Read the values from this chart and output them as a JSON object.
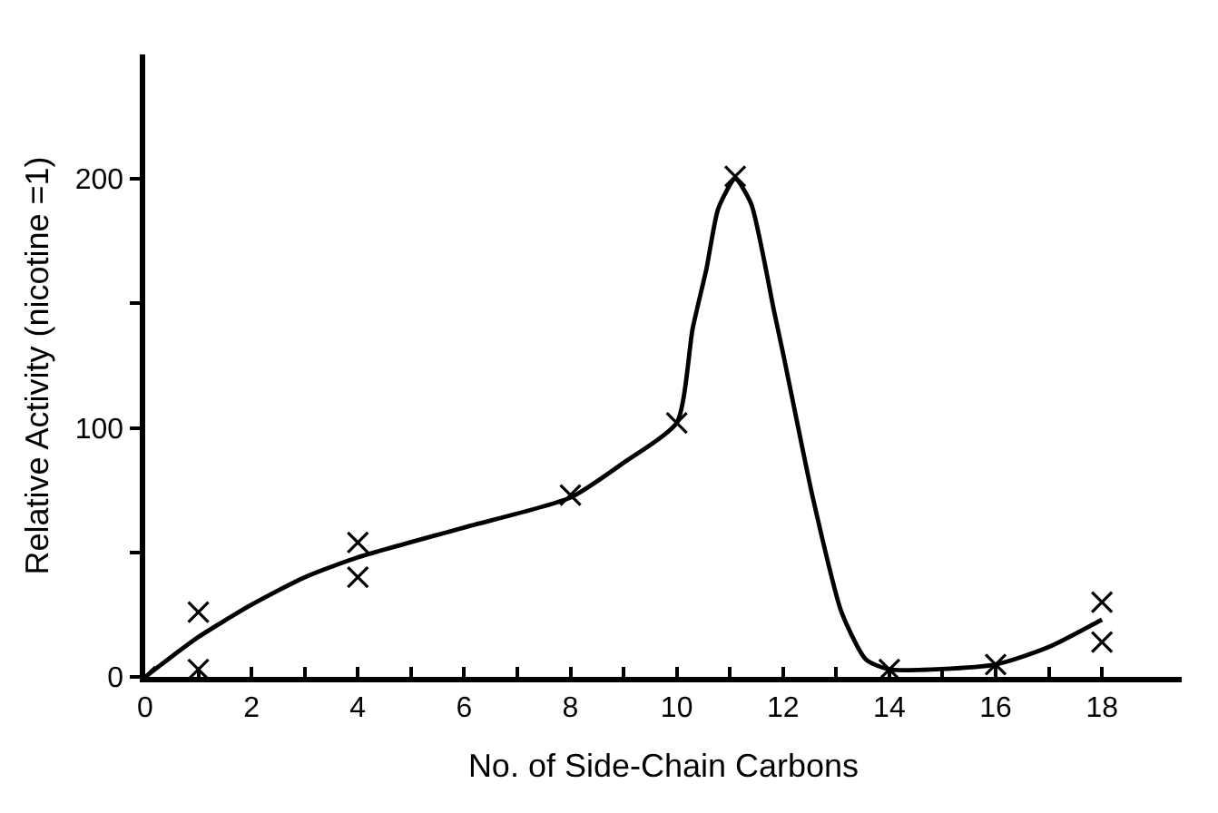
{
  "chart_data": {
    "type": "scatter",
    "xlabel": "No. of Side-Chain Carbons",
    "ylabel": "Relative Activity (nicotine =1)",
    "series": [
      {
        "color": "#000000",
        "marker": "cross",
        "x": [
          0,
          1,
          1,
          4,
          4,
          8,
          10,
          11.1,
          14,
          16,
          18,
          18
        ],
        "values": [
          0,
          26,
          3,
          54,
          40,
          73,
          102,
          201,
          3,
          5,
          30,
          14
        ]
      },
      {
        "type": "line",
        "color": "#000000",
        "marker": "none",
        "x": [
          0,
          1,
          2,
          3,
          4,
          6,
          8,
          9,
          10,
          10.3,
          10.56,
          10.78,
          11.1,
          11.4,
          11.83,
          12,
          12.22,
          12.56,
          13.1,
          13.56,
          14,
          16,
          17,
          18
        ],
        "values": [
          0,
          16,
          29,
          40,
          48,
          60,
          72,
          86,
          102,
          140,
          164,
          188,
          200,
          190,
          147,
          130,
          107,
          72,
          26,
          7,
          3,
          5,
          12,
          23
        ]
      }
    ],
    "xlim": [
      0,
      19.5
    ],
    "ylim": [
      0,
      250
    ],
    "xticks": [
      0,
      {
        "value": 1,
        "label": null
      },
      2,
      {
        "value": 3,
        "label": null
      },
      4,
      {
        "value": 5,
        "label": null
      },
      6,
      {
        "value": 7,
        "label": null
      },
      8,
      {
        "value": 9,
        "label": null
      },
      10,
      {
        "value": 11,
        "label": null
      },
      12,
      {
        "value": 13,
        "label": null
      },
      14,
      {
        "value": 15,
        "label": null
      },
      16,
      {
        "value": 17,
        "label": null
      },
      18
    ],
    "yticks": [
      0,
      {
        "value": 50,
        "label": null
      },
      100,
      {
        "value": 150,
        "label": null
      },
      200
    ]
  }
}
